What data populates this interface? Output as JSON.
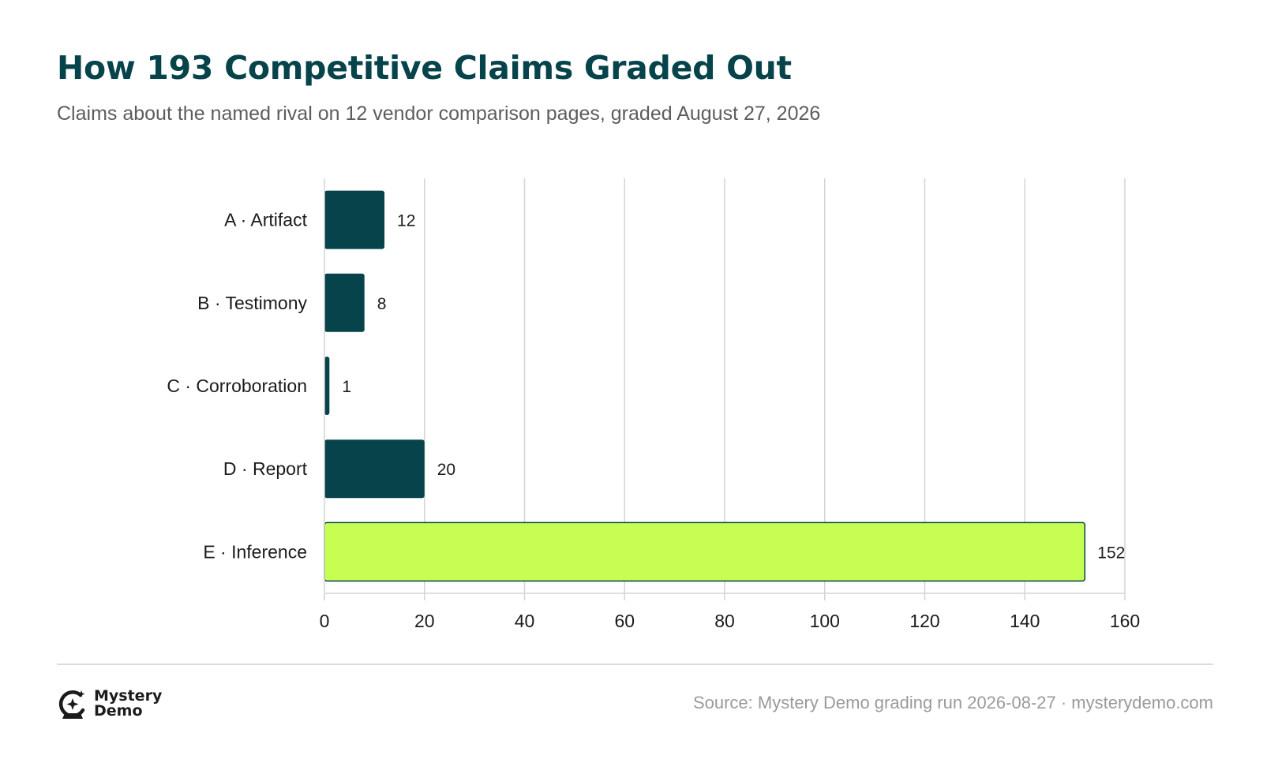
{
  "header": {
    "title": "How 193 Competitive Claims Graded Out",
    "subtitle": "Claims about the named rival on 12 vendor comparison pages, graded August 27, 2026"
  },
  "chart_data": {
    "type": "bar",
    "orientation": "horizontal",
    "categories": [
      "A · Artifact",
      "B · Testimony",
      "C · Corroboration",
      "D · Report",
      "E · Inference"
    ],
    "values": [
      12,
      8,
      1,
      20,
      152
    ],
    "data_labels": [
      "12",
      "8",
      "1",
      "20",
      "152"
    ],
    "xlim": [
      0,
      160
    ],
    "x_ticks": [
      0,
      20,
      40,
      60,
      80,
      100,
      120,
      140,
      160
    ],
    "grid": "vertical",
    "legend": "none",
    "colors": {
      "bar": "#06434a",
      "highlight": "#c6ff52",
      "highlight_border": "#06434a",
      "grid": "#d4d4d4",
      "text": "#1b1b1b"
    },
    "highlight_index": 4
  },
  "footer": {
    "logo_icon": "crystal-ball-sparkle-icon",
    "logo_line1": "Mystery",
    "logo_line2": "Demo",
    "source": "Source: Mystery Demo grading run 2026-08-27 · mysterydemo.com"
  }
}
